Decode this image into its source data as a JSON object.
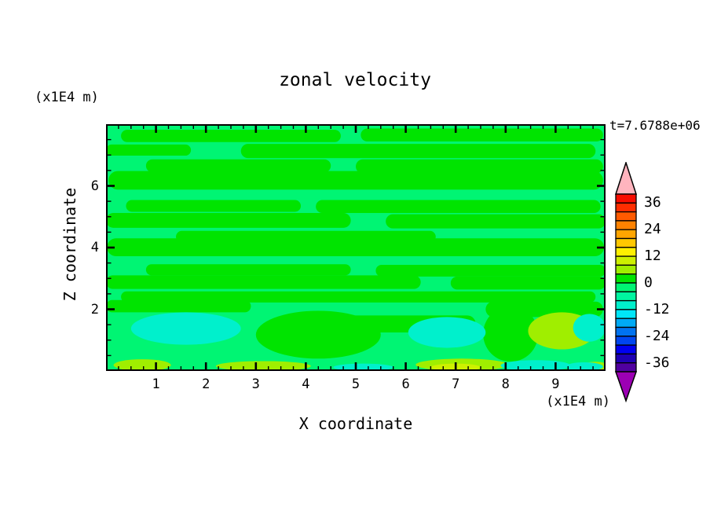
{
  "chart_data": {
    "type": "filled_contour",
    "title": "zonal velocity",
    "time_label": "t=7.6788e+06",
    "x_axis": {
      "title": "X coordinate",
      "units": "(x1E4 m)",
      "min": 0,
      "max": 10,
      "major_ticks": [
        1,
        2,
        3,
        4,
        5,
        6,
        7,
        8,
        9
      ],
      "minor_tick_step": 0.25
    },
    "z_axis": {
      "title": "Z coordinate",
      "units": "(x1E4 m)",
      "min": 0,
      "max": 8,
      "major_ticks": [
        2,
        4,
        6
      ],
      "minor_tick_step": 0.5
    },
    "colorbar": {
      "tick_labels": [
        36,
        24,
        12,
        0,
        -12,
        -24,
        -36
      ],
      "value_min": -40,
      "value_max": 40,
      "contour_interval": 4,
      "over_arrow_color": "#FFB4BE",
      "under_arrow_color": "#9C00B4",
      "segments": [
        {
          "min": 36,
          "max": 40,
          "color": "#F80C00"
        },
        {
          "min": 32,
          "max": 36,
          "color": "#FF2D00"
        },
        {
          "min": 28,
          "max": 32,
          "color": "#FF5A00"
        },
        {
          "min": 24,
          "max": 28,
          "color": "#FF8200"
        },
        {
          "min": 20,
          "max": 24,
          "color": "#FFA500"
        },
        {
          "min": 16,
          "max": 20,
          "color": "#FFC800"
        },
        {
          "min": 12,
          "max": 16,
          "color": "#FFF000"
        },
        {
          "min": 8,
          "max": 12,
          "color": "#CDF000"
        },
        {
          "min": 4,
          "max": 8,
          "color": "#A0EE00"
        },
        {
          "min": 0,
          "max": 4,
          "color": "#00E400"
        },
        {
          "min": -4,
          "max": 0,
          "color": "#00F573"
        },
        {
          "min": -8,
          "max": -4,
          "color": "#00F5A0"
        },
        {
          "min": -12,
          "max": -8,
          "color": "#00F0CC"
        },
        {
          "min": -16,
          "max": -12,
          "color": "#00E6F8"
        },
        {
          "min": -20,
          "max": -16,
          "color": "#00AAF5"
        },
        {
          "min": -24,
          "max": -20,
          "color": "#0073F0"
        },
        {
          "min": -28,
          "max": -24,
          "color": "#0046F0"
        },
        {
          "min": -32,
          "max": -28,
          "color": "#0000F0"
        },
        {
          "min": -36,
          "max": -32,
          "color": "#1E00B4"
        },
        {
          "min": -40,
          "max": -36,
          "color": "#5000A0"
        }
      ]
    },
    "field": {
      "background_seg": 10,
      "levels_legend": {
        "7": "8 to 12 (yellow)",
        "8": "4 to 8 (yellow-green)",
        "9": "0 to 4 (green)",
        "10": "-4 to 0 (spring green, background)",
        "12": "-12 to -8 (turquoise)"
      },
      "regions": [
        {
          "shape": "rect",
          "x": 0.3,
          "z": 7.42,
          "w": 4.4,
          "h": 0.4,
          "seg": 9
        },
        {
          "shape": "rect",
          "x": 5.1,
          "z": 7.44,
          "w": 4.85,
          "h": 0.42,
          "seg": 9
        },
        {
          "shape": "rect",
          "x": 0.0,
          "z": 6.98,
          "w": 1.7,
          "h": 0.36,
          "seg": 9
        },
        {
          "shape": "rect",
          "x": 2.7,
          "z": 6.9,
          "w": 7.1,
          "h": 0.46,
          "seg": 9
        },
        {
          "shape": "rect",
          "x": 0.8,
          "z": 6.44,
          "w": 3.7,
          "h": 0.42,
          "seg": 9
        },
        {
          "shape": "rect",
          "x": 5.0,
          "z": 6.4,
          "w": 4.95,
          "h": 0.46,
          "seg": 9
        },
        {
          "shape": "rect",
          "x": 0.05,
          "z": 5.88,
          "w": 9.9,
          "h": 0.6,
          "seg": 9
        },
        {
          "shape": "rect",
          "x": 0.4,
          "z": 5.16,
          "w": 3.5,
          "h": 0.38,
          "seg": 9
        },
        {
          "shape": "rect",
          "x": 4.2,
          "z": 5.12,
          "w": 5.7,
          "h": 0.42,
          "seg": 9
        },
        {
          "shape": "rect",
          "x": 0.0,
          "z": 4.64,
          "w": 4.9,
          "h": 0.48,
          "seg": 9
        },
        {
          "shape": "rect",
          "x": 5.6,
          "z": 4.62,
          "w": 4.4,
          "h": 0.46,
          "seg": 9
        },
        {
          "shape": "rect",
          "x": 1.4,
          "z": 4.16,
          "w": 5.2,
          "h": 0.38,
          "seg": 9
        },
        {
          "shape": "rect",
          "x": 0.02,
          "z": 3.72,
          "w": 9.95,
          "h": 0.58,
          "seg": 9
        },
        {
          "shape": "rect",
          "x": 0.8,
          "z": 3.1,
          "w": 4.1,
          "h": 0.36,
          "seg": 9
        },
        {
          "shape": "rect",
          "x": 5.4,
          "z": 3.06,
          "w": 4.6,
          "h": 0.38,
          "seg": 9
        },
        {
          "shape": "rect",
          "x": 0.0,
          "z": 2.66,
          "w": 6.3,
          "h": 0.44,
          "seg": 9
        },
        {
          "shape": "rect",
          "x": 6.9,
          "z": 2.64,
          "w": 3.1,
          "h": 0.42,
          "seg": 9
        },
        {
          "shape": "rect",
          "x": 0.3,
          "z": 2.22,
          "w": 9.5,
          "h": 0.36,
          "seg": 9
        },
        {
          "shape": "rect",
          "x": 7.6,
          "z": 1.75,
          "w": 2.35,
          "h": 0.5,
          "seg": 9
        },
        {
          "shape": "rect",
          "x": 0.0,
          "z": 1.9,
          "w": 2.9,
          "h": 0.4,
          "seg": 9
        },
        {
          "shape": "rect",
          "x": 4.4,
          "z": 1.25,
          "w": 3.0,
          "h": 0.55,
          "seg": 9
        },
        {
          "shape": "ellipse",
          "x": 3.0,
          "z": 0.4,
          "w": 2.5,
          "h": 1.55,
          "seg": 9
        },
        {
          "shape": "ellipse",
          "x": 7.55,
          "z": 0.3,
          "w": 1.1,
          "h": 1.8,
          "seg": 9
        },
        {
          "shape": "ellipse",
          "x": 0.15,
          "z": 0.0,
          "w": 1.15,
          "h": 0.38,
          "seg": 8
        },
        {
          "shape": "ellipse",
          "x": 2.2,
          "z": 0.0,
          "w": 1.9,
          "h": 0.32,
          "seg": 8
        },
        {
          "shape": "ellipse",
          "x": 6.2,
          "z": 0.0,
          "w": 1.85,
          "h": 0.4,
          "seg": 8
        },
        {
          "shape": "ellipse",
          "x": 8.45,
          "z": 0.7,
          "w": 1.35,
          "h": 1.2,
          "seg": 8
        },
        {
          "shape": "ellipse",
          "x": 9.55,
          "z": 0.0,
          "w": 0.5,
          "h": 0.3,
          "seg": 8
        },
        {
          "shape": "ellipse",
          "x": 6.5,
          "z": 0.0,
          "w": 1.0,
          "h": 0.24,
          "seg": 7
        },
        {
          "shape": "ellipse",
          "x": 0.5,
          "z": 0.85,
          "w": 2.2,
          "h": 1.05,
          "seg": 12
        },
        {
          "shape": "ellipse",
          "x": 6.05,
          "z": 0.75,
          "w": 1.55,
          "h": 1.0,
          "seg": 12
        },
        {
          "shape": "ellipse",
          "x": 7.9,
          "z": 0.0,
          "w": 1.4,
          "h": 0.35,
          "seg": 12
        },
        {
          "shape": "ellipse",
          "x": 9.2,
          "z": 0.0,
          "w": 0.75,
          "h": 0.28,
          "seg": 12
        },
        {
          "shape": "ellipse",
          "x": 4.55,
          "z": 0.0,
          "w": 1.2,
          "h": 0.24,
          "seg": 12
        },
        {
          "shape": "ellipse",
          "x": 9.35,
          "z": 0.95,
          "w": 0.65,
          "h": 0.9,
          "seg": 12
        }
      ]
    }
  }
}
